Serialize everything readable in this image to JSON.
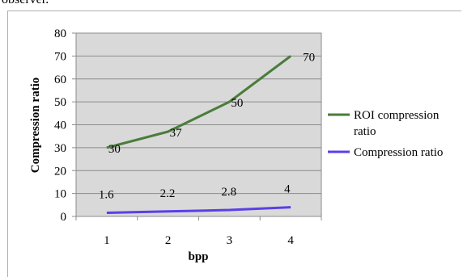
{
  "top_fragment": "observer.",
  "chart_data": {
    "type": "line",
    "xlabel": "bpp",
    "ylabel": "Compression ratio",
    "categories": [
      "1",
      "2",
      "3",
      "4"
    ],
    "ylim": [
      0,
      80
    ],
    "yticks": [
      "0",
      "10",
      "20",
      "30",
      "40",
      "50",
      "60",
      "70",
      "80"
    ],
    "grid": true,
    "legend_position": "right",
    "series": [
      {
        "name": "ROI compression ratio",
        "legend_lines": [
          "ROI compression",
          "ratio"
        ],
        "color": "#4a7d3b",
        "values": [
          30,
          37,
          50,
          70
        ],
        "labels": [
          "30",
          "37",
          "50",
          "70"
        ]
      },
      {
        "name": "Compression ratio",
        "legend_lines": [
          "Compression ratio"
        ],
        "color": "#5b3fe6",
        "values": [
          1.6,
          2.2,
          2.8,
          4
        ],
        "labels": [
          "1.6",
          "2.2",
          "2.8",
          "4"
        ]
      }
    ]
  }
}
